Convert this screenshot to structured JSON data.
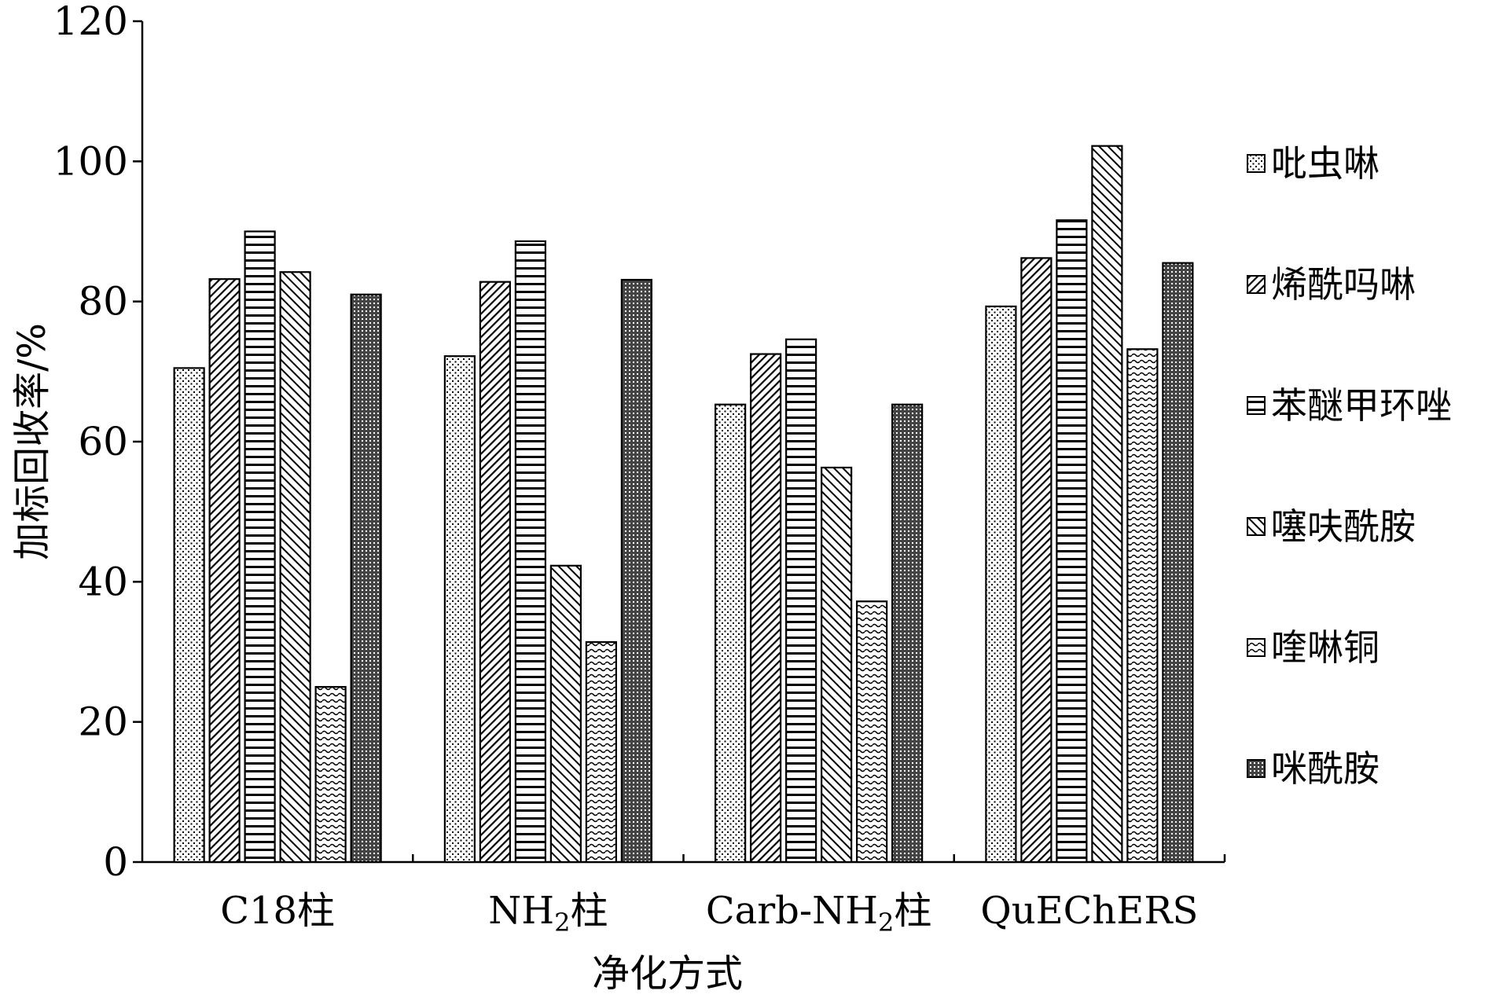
{
  "chart_data": {
    "type": "bar",
    "title": "",
    "xlabel": "净化方式",
    "ylabel": "加标回收率/%",
    "ylim": [
      0,
      120
    ],
    "yticks": [
      "0",
      "20",
      "40",
      "60",
      "80",
      "100",
      "120"
    ],
    "grid": false,
    "legend_position": "right",
    "categories": [
      {
        "label": "C18柱",
        "parts": [
          [
            "C18柱",
            false
          ]
        ]
      },
      {
        "label": "NH2柱",
        "parts": [
          [
            "NH",
            false
          ],
          [
            "2",
            true
          ],
          [
            "柱",
            false
          ]
        ]
      },
      {
        "label": "Carb-NH2柱",
        "parts": [
          [
            "Carb-NH",
            false
          ],
          [
            "2",
            true
          ],
          [
            "柱",
            false
          ]
        ]
      },
      {
        "label": "QuEChERS",
        "parts": [
          [
            "QuEChERS",
            false
          ]
        ]
      }
    ],
    "series": [
      {
        "name": "吡虫啉",
        "pattern": "dots",
        "values": [
          70.5,
          72.2,
          65.3,
          79.3
        ]
      },
      {
        "name": "烯酰吗啉",
        "pattern": "diag-dense",
        "values": [
          83.2,
          82.8,
          72.5,
          86.2
        ]
      },
      {
        "name": "苯醚甲环唑",
        "pattern": "hlines",
        "values": [
          90.0,
          88.6,
          74.6,
          91.6
        ]
      },
      {
        "name": "噻呋酰胺",
        "pattern": "diag-wide",
        "values": [
          84.2,
          42.3,
          56.3,
          102.2
        ]
      },
      {
        "name": "喹啉铜",
        "pattern": "waves",
        "values": [
          25.0,
          31.4,
          37.2,
          73.2
        ]
      },
      {
        "name": "咪酰胺",
        "pattern": "crosshatch",
        "values": [
          81.0,
          83.1,
          65.3,
          85.5
        ]
      }
    ]
  }
}
